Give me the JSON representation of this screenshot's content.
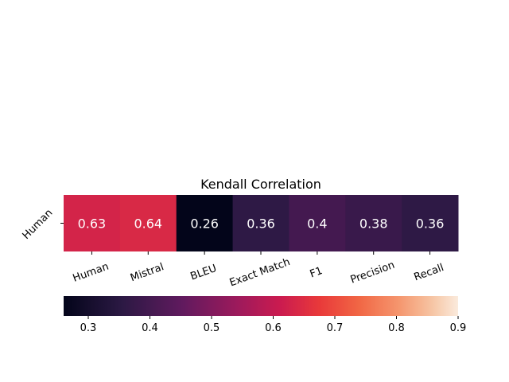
{
  "chart_data": {
    "type": "heatmap",
    "title": "Kendall Correlation",
    "rows": [
      "Human"
    ],
    "columns": [
      "Human",
      "Mistral",
      "BLEU",
      "Exact Match",
      "F1",
      "Precision",
      "Recall"
    ],
    "values": [
      [
        0.63,
        0.64,
        0.26,
        0.36,
        0.4,
        0.38,
        0.36
      ]
    ],
    "value_labels": [
      "0.63",
      "0.64",
      "0.26",
      "0.36",
      "0.4",
      "0.38",
      "0.36"
    ],
    "colorbar": {
      "orientation": "horizontal",
      "range": [
        0.26,
        0.9
      ],
      "ticks": [
        0.3,
        0.4,
        0.5,
        0.6,
        0.7,
        0.8,
        0.9
      ],
      "tick_labels": [
        "0.3",
        "0.4",
        "0.5",
        "0.6",
        "0.7",
        "0.8",
        "0.9"
      ],
      "colormap": "rocket"
    },
    "grid": false
  }
}
